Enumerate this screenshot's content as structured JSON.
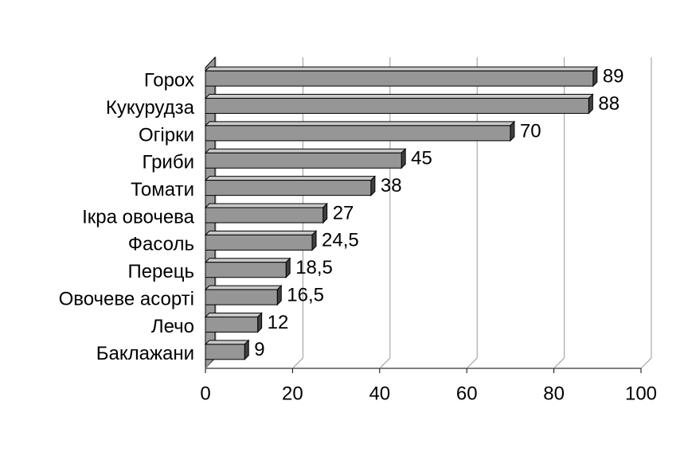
{
  "chart_data": {
    "type": "bar",
    "orientation": "horizontal",
    "categories": [
      "Горох",
      "Кукурудза",
      "Огірки",
      "Гриби",
      "Томати",
      "Ікра овочева",
      "Фасоль",
      "Перець",
      "Овочеве асорті",
      "Лечо",
      "Баклажани"
    ],
    "values": [
      89,
      88,
      70,
      45,
      38,
      27,
      24.5,
      18.5,
      16.5,
      12,
      9
    ],
    "value_labels": [
      "89",
      "88",
      "70",
      "45",
      "38",
      "27",
      "24,5",
      "18,5",
      "16,5",
      "12",
      "9"
    ],
    "color": "#969696",
    "xlim": [
      0,
      100
    ],
    "xticks": [
      0,
      20,
      40,
      60,
      80,
      100
    ],
    "grid": true
  }
}
